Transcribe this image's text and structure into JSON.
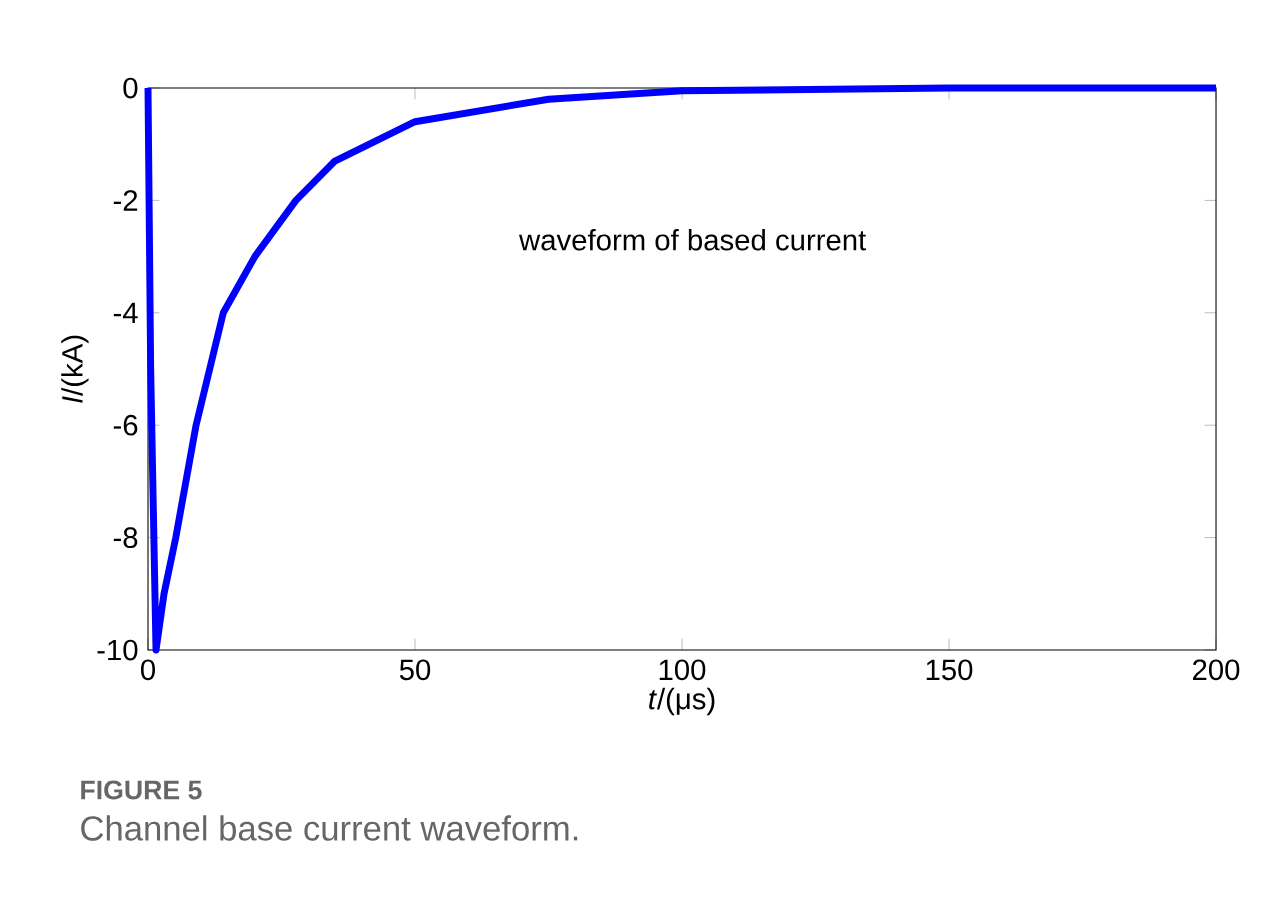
{
  "chart_data": {
    "type": "line",
    "xlabel": "*t*/(μs)",
    "ylabel": "*I*/(kA)",
    "x": [
      0,
      0.5,
      1.5,
      3,
      5.2,
      9,
      14.1,
      20,
      27.7,
      35,
      50,
      75,
      100,
      150,
      200
    ],
    "values": [
      0,
      -5,
      -10,
      -9,
      -8,
      -6,
      -4,
      -3,
      -2,
      -1.3,
      -0.6,
      -0.2,
      -0.05,
      0,
      0
    ],
    "color": "#0000ff",
    "xlim": [
      0,
      200
    ],
    "ylim": [
      -10,
      0
    ],
    "xticks": [
      0,
      50,
      100,
      150,
      200
    ],
    "yticks": [
      0,
      -2,
      -4,
      -6,
      -8,
      -10
    ],
    "annotations": [
      "waveform of based current",
      "**FIGURE 5**",
      "Channel base current waveform."
    ]
  }
}
